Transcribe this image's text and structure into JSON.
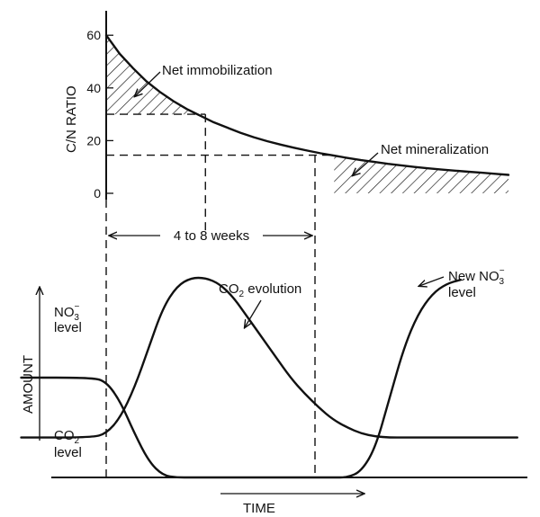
{
  "chart_data": [
    {
      "type": "line",
      "panel": "top",
      "ylabel": "C/N RATIO",
      "ylim": [
        0,
        65
      ],
      "yticks": [
        0,
        20,
        40,
        60
      ],
      "x_units": "weeks (relative)",
      "series": [
        {
          "x": [
            0,
            0.5,
            1,
            1.5,
            2,
            2.5,
            3,
            3.5,
            4,
            4.5,
            5,
            5.5,
            6,
            6.5,
            7,
            7.5,
            8,
            8.5,
            9,
            9.5,
            10,
            10.5,
            11,
            11.5,
            12,
            12.5,
            13,
            13.5,
            14,
            14.5,
            15
          ],
          "values": [
            60,
            53,
            47.5,
            42.5,
            38.5,
            35,
            32,
            29.5,
            27,
            25,
            23,
            21.3,
            19.8,
            18.5,
            17.3,
            16.2,
            15.2,
            14.3,
            13.4,
            12.6,
            11.9,
            11.2,
            10.6,
            10,
            9.5,
            9,
            8.6,
            8.2,
            7.8,
            7.4,
            7
          ]
        }
      ],
      "reference_levels": [
        {
          "y": 30,
          "x_end": 3.7
        },
        {
          "y": 14.5,
          "x_end": 8.5
        }
      ],
      "annotations": {
        "immobilization": "Net immobilization",
        "mineralization": "Net mineralization"
      }
    },
    {
      "type": "line",
      "panel": "bottom",
      "ylabel": "AMOUNT",
      "xlabel": "TIME",
      "series": [
        {
          "label_main": "CO",
          "label_sub": "2",
          "label_rest": " evolution",
          "x": [
            -3,
            -0.5,
            0,
            0.5,
            1,
            1.5,
            2,
            2.5,
            3,
            3.5,
            4,
            4.5,
            5,
            5.5,
            6,
            6.5,
            7,
            7.5,
            8,
            8.5,
            9,
            9.5,
            10,
            10.5,
            11,
            11.5,
            12,
            12.5,
            13,
            13.5,
            14,
            14.5
          ],
          "values": [
            20,
            20,
            22,
            30,
            45,
            65,
            85,
            96,
            100,
            100,
            97,
            90,
            80,
            70,
            60,
            50,
            42,
            35,
            29,
            25,
            22,
            20.5,
            20,
            20,
            20,
            20,
            20,
            20,
            20,
            20,
            20,
            20
          ]
        },
        {
          "label_main": "NO",
          "label_sup": "−",
          "label_sub": "3",
          "x": [
            -3,
            -0.5,
            0,
            0.5,
            1,
            1.5,
            2,
            2.5,
            3,
            3.5,
            4,
            4.5,
            5,
            5.5,
            6,
            6.5,
            7,
            7.5,
            8,
            8.5,
            9,
            9.5,
            10,
            10.5,
            11,
            11.5,
            12,
            12.5
          ],
          "values": [
            50,
            50,
            48,
            38,
            22,
            8,
            1,
            0,
            0,
            0,
            0,
            0,
            0,
            0,
            0,
            0,
            0,
            0,
            0,
            0,
            3,
            15,
            40,
            65,
            82,
            92,
            97,
            99
          ]
        }
      ],
      "labels": {
        "no3_main": "NO",
        "no3_sup": "−",
        "no3_sub": "3",
        "no3_rest": "level",
        "co2_main": "CO",
        "co2_sub": "2",
        "co2_rest": "level",
        "co2_evo_main": "CO",
        "co2_evo_sub": "2",
        "co2_evo_rest": " evolution",
        "new_line1": "New NO",
        "new_sup": "−",
        "new_sub": "3",
        "new_line2": "level"
      },
      "interval_label": "4 to 8 weeks"
    }
  ]
}
